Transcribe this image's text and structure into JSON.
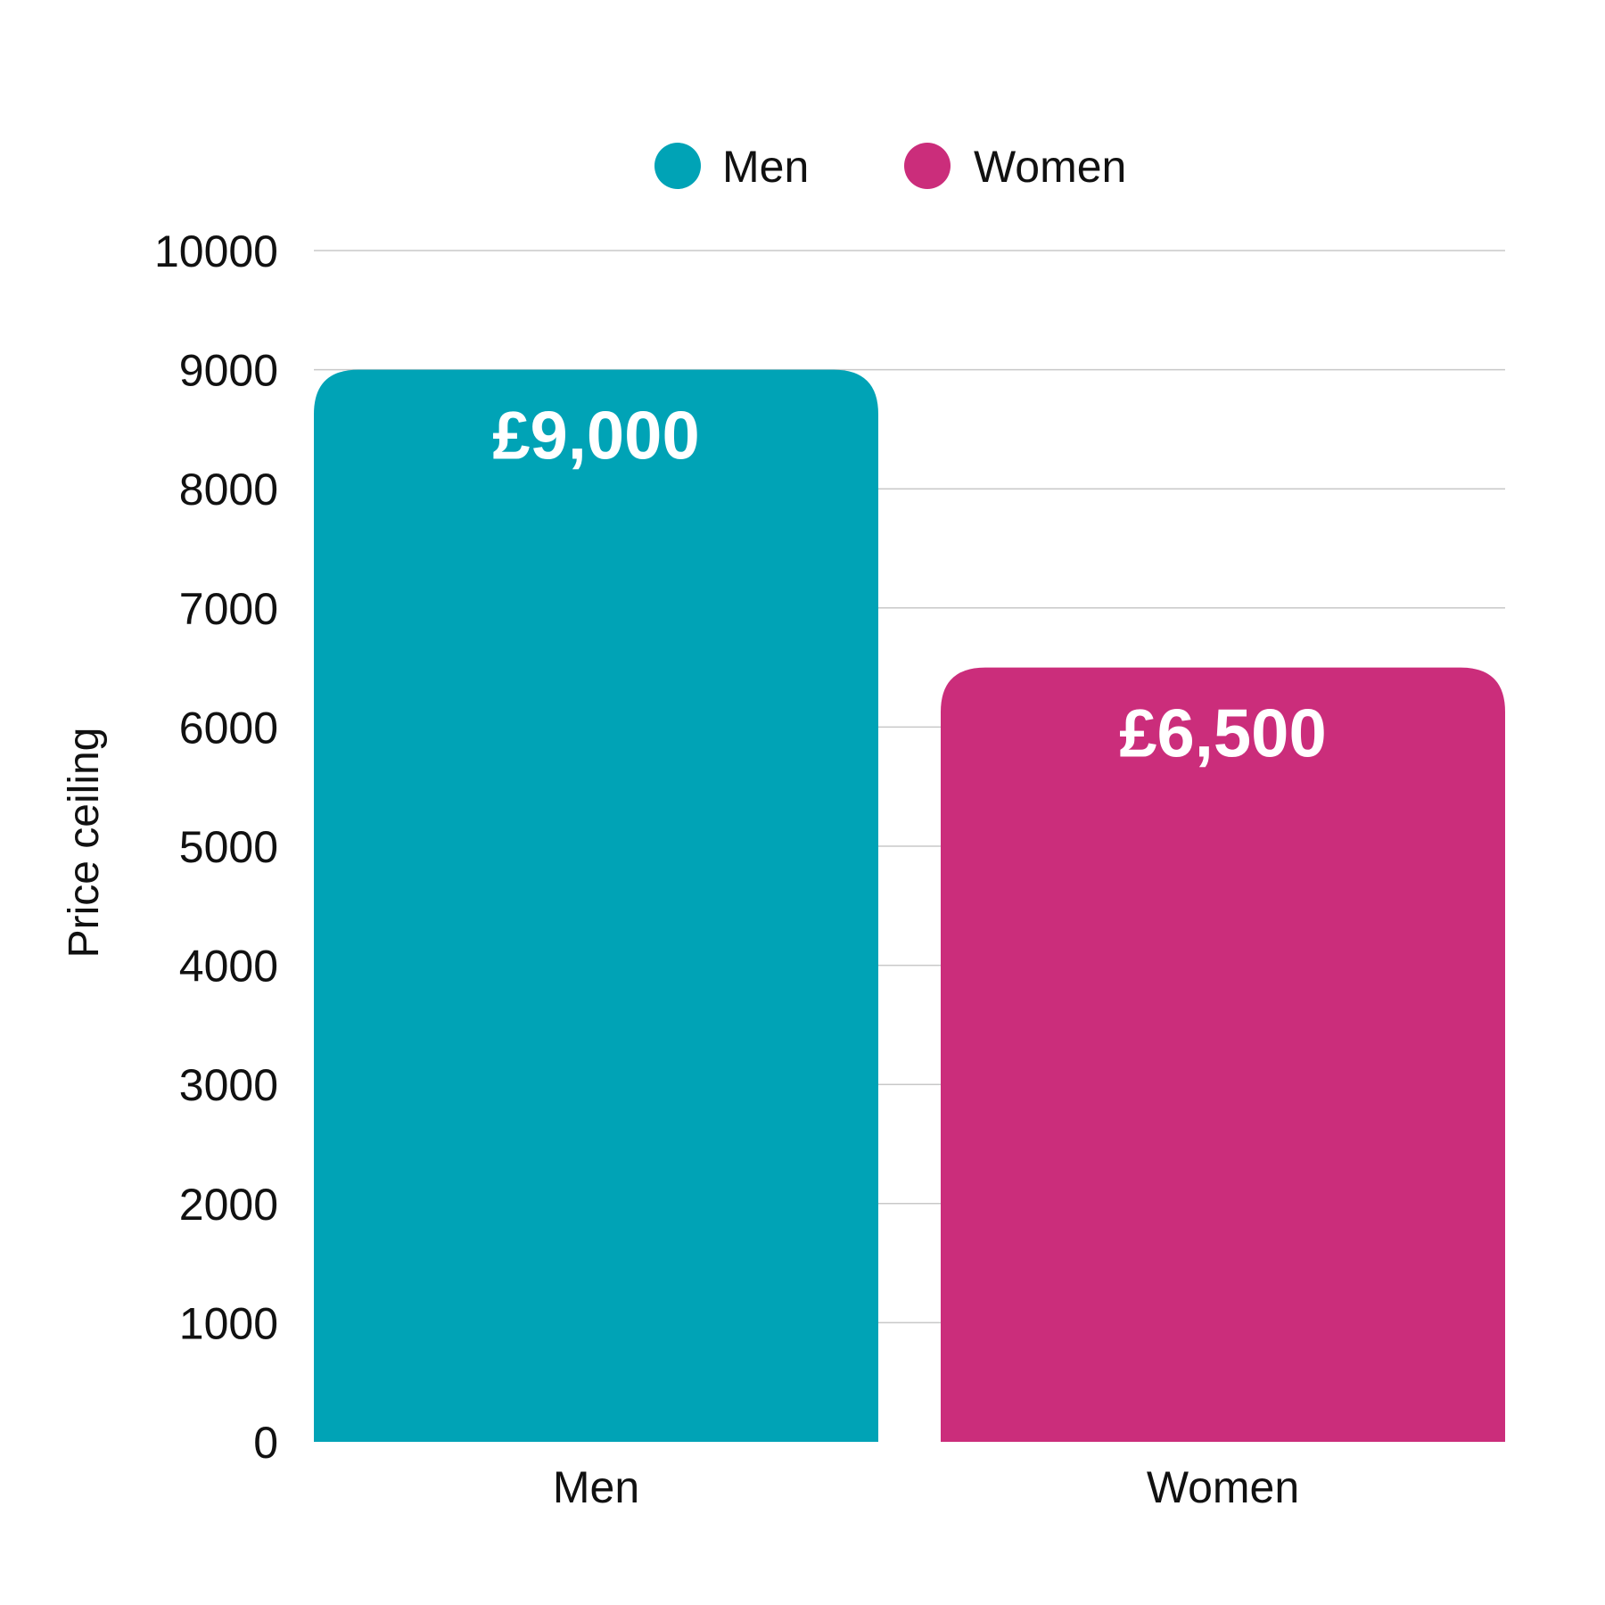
{
  "chart_data": {
    "type": "bar",
    "categories": [
      "Men",
      "Women"
    ],
    "values": [
      9000,
      6500
    ],
    "data_labels": [
      "£9,000",
      "£6,500"
    ],
    "colors": [
      "#00a3b6",
      "#cb2d7b"
    ],
    "title": "",
    "xlabel": "",
    "ylabel": "Price ceiling",
    "ylim": [
      0,
      10000
    ],
    "yticks": [
      0,
      1000,
      2000,
      3000,
      4000,
      5000,
      6000,
      7000,
      8000,
      9000,
      10000
    ],
    "grid": true,
    "legend": {
      "placement": "top-center",
      "entries": [
        {
          "label": "Men",
          "color": "#00a3b6"
        },
        {
          "label": "Women",
          "color": "#cb2d7b"
        }
      ]
    }
  }
}
